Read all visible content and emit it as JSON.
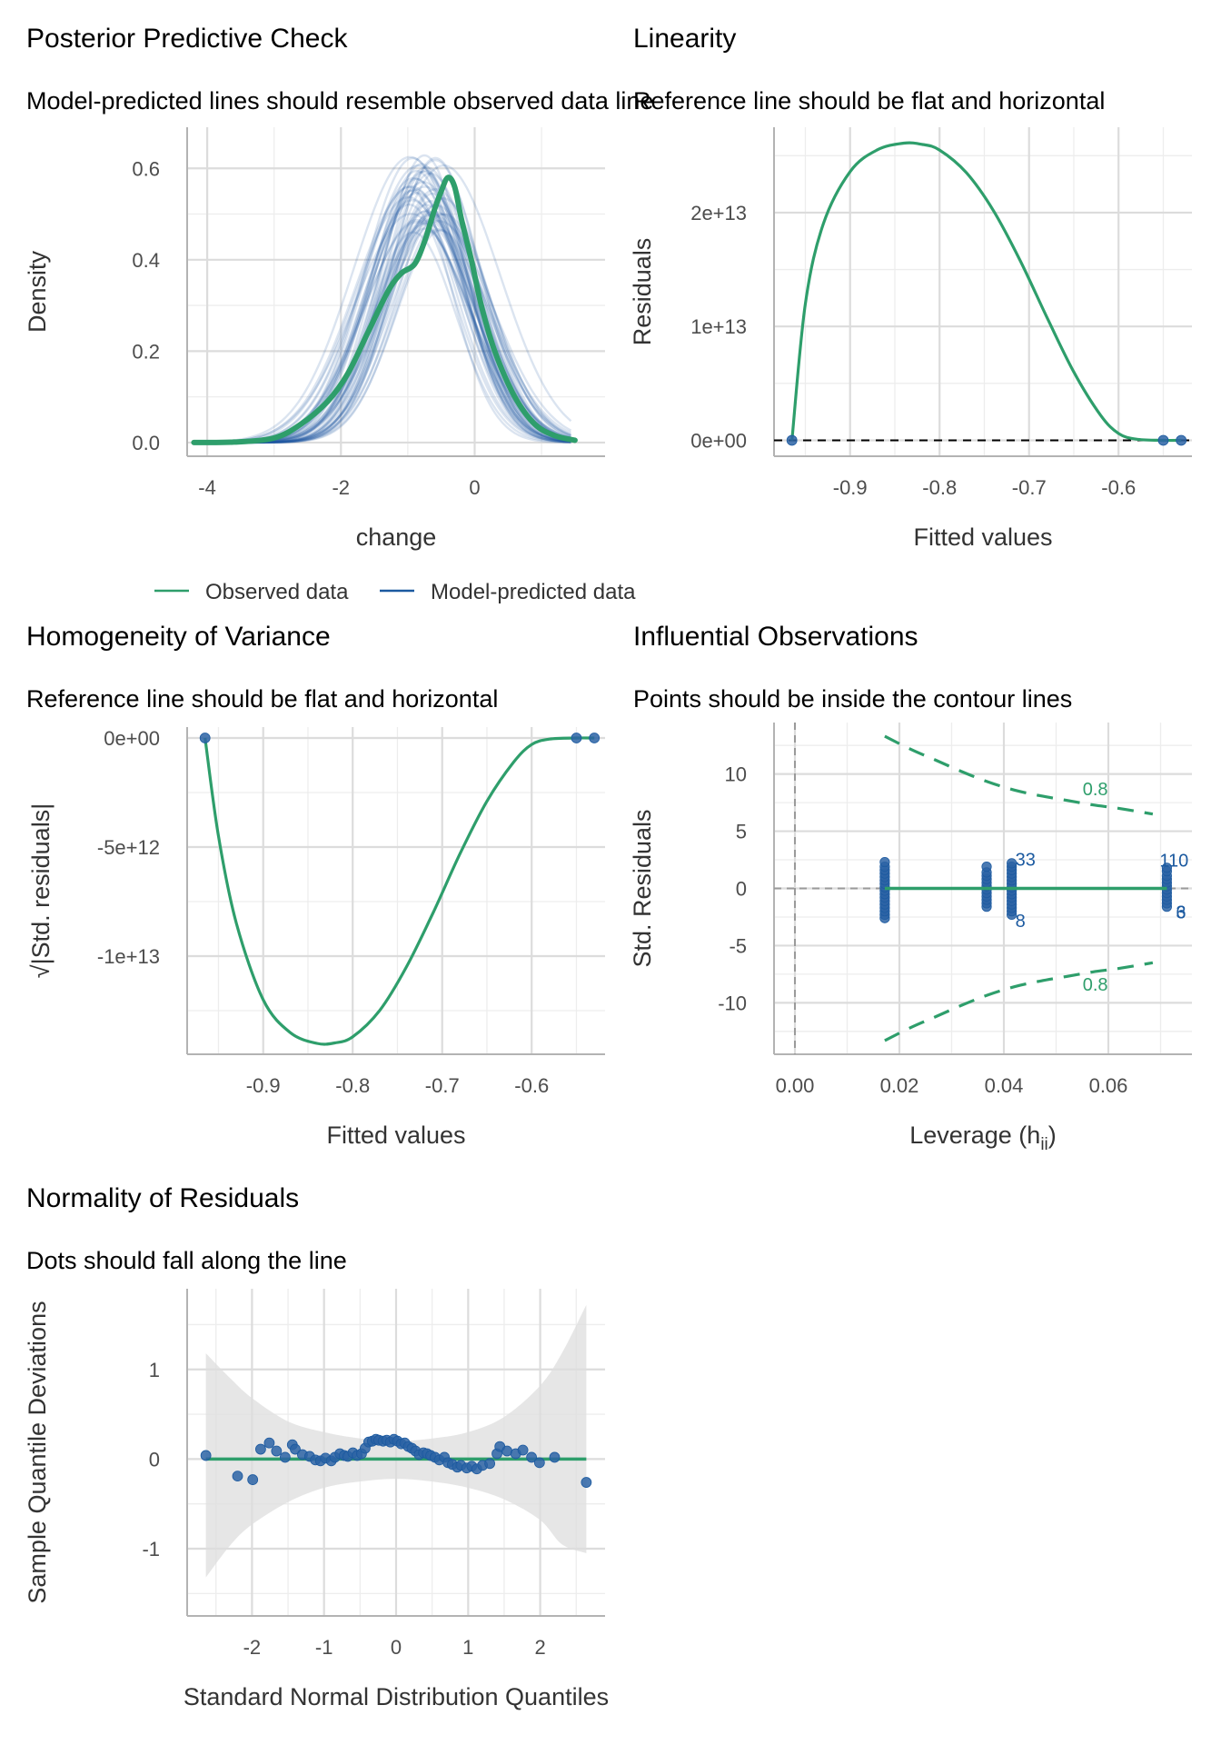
{
  "colors": {
    "observed": "#2e9e6b",
    "predicted": "#1c5aa0",
    "point": "#2b63a5",
    "band": "#dedede",
    "ref": "#000000"
  },
  "chart_data": [
    {
      "type": "line",
      "title": "Posterior Predictive Check",
      "subtitle": "Model-predicted lines should resemble observed data line",
      "xlabel": "change",
      "ylabel": "Density",
      "xlim": [
        -4.3,
        1.95
      ],
      "ylim": [
        -0.03,
        0.69
      ],
      "xticks": [
        -4,
        -2,
        0
      ],
      "xtick_labels": [
        "-4",
        "-2",
        "0"
      ],
      "yticks": [
        0,
        0.2,
        0.4,
        0.6
      ],
      "ytick_labels": [
        "0.0",
        "0.2",
        "0.4",
        "0.6"
      ],
      "legend": {
        "position": "bottom",
        "entries": [
          "Observed data",
          "Model-predicted data"
        ]
      },
      "series": [
        {
          "name": "Observed data",
          "x": [
            -4.2,
            -3.6,
            -3.0,
            -2.6,
            -2.2,
            -1.9,
            -1.6,
            -1.3,
            -1.1,
            -0.9,
            -0.75,
            -0.6,
            -0.5,
            -0.4,
            -0.3,
            -0.2,
            -0.05,
            0.1,
            0.3,
            0.6,
            0.9,
            1.2,
            1.5
          ],
          "y": [
            0.0,
            0.001,
            0.01,
            0.04,
            0.09,
            0.15,
            0.24,
            0.33,
            0.37,
            0.39,
            0.44,
            0.51,
            0.55,
            0.58,
            0.56,
            0.49,
            0.4,
            0.3,
            0.2,
            0.1,
            0.04,
            0.015,
            0.005
          ]
        },
        {
          "name": "Model-predicted data",
          "draws": 50,
          "mean_center": -0.72,
          "peak_range": [
            0.46,
            0.63
          ],
          "sd_range": [
            0.6,
            0.86
          ],
          "x_range": [
            -4.2,
            1.5
          ]
        }
      ]
    },
    {
      "type": "line",
      "title": "Linearity",
      "subtitle": "Reference line should be flat and horizontal",
      "xlabel": "Fitted values",
      "ylabel": "Residuals",
      "xlim": [
        -0.985,
        -0.518
      ],
      "ylim": [
        -1400000000000.0,
        27500000000000.0
      ],
      "xticks": [
        -0.9,
        -0.8,
        -0.7,
        -0.6
      ],
      "xtick_labels": [
        "-0.9",
        "-0.8",
        "-0.7",
        "-0.6"
      ],
      "yticks": [
        0,
        10000000000000.0,
        20000000000000.0
      ],
      "ytick_labels": [
        "0e+00",
        "1e+13",
        "2e+13"
      ],
      "reference_line": 0,
      "smooth": {
        "x": [
          -0.965,
          -0.95,
          -0.93,
          -0.9,
          -0.87,
          -0.84,
          -0.82,
          -0.8,
          -0.77,
          -0.74,
          -0.71,
          -0.68,
          -0.65,
          -0.62,
          -0.6,
          -0.58,
          -0.55,
          -0.53
        ],
        "y": [
          0,
          12000000000000.0,
          19000000000000.0,
          23600000000000.0,
          25500000000000.0,
          26100000000000.0,
          26000000000000.0,
          25500000000000.0,
          23500000000000.0,
          20200000000000.0,
          15800000000000.0,
          10800000000000.0,
          6000000000000.0,
          2200000000000.0,
          600000000000.0,
          100000000000.0,
          0,
          0
        ]
      },
      "points": {
        "x": [
          -0.965,
          -0.55,
          -0.53
        ],
        "y": [
          0,
          0,
          0
        ]
      }
    },
    {
      "type": "line",
      "title": "Homogeneity of Variance",
      "subtitle": "Reference line should be flat and horizontal",
      "xlabel": "Fitted values",
      "ylabel": "√|Std. residuals|",
      "xlim": [
        -0.985,
        -0.518
      ],
      "ylim": [
        -14500000000000.0,
        500000000000.0
      ],
      "xticks": [
        -0.9,
        -0.8,
        -0.7,
        -0.6
      ],
      "xtick_labels": [
        "-0.9",
        "-0.8",
        "-0.7",
        "-0.6"
      ],
      "yticks": [
        0,
        -5000000000000.0,
        -10000000000000.0
      ],
      "ytick_labels": [
        "0e+00",
        "-5e+12",
        "-1e+13"
      ],
      "smooth": {
        "x": [
          -0.965,
          -0.95,
          -0.93,
          -0.9,
          -0.87,
          -0.84,
          -0.82,
          -0.8,
          -0.77,
          -0.74,
          -0.71,
          -0.68,
          -0.65,
          -0.62,
          -0.6,
          -0.58,
          -0.55,
          -0.53
        ],
        "y": [
          0,
          -4500000000000.0,
          -8500000000000.0,
          -12000000000000.0,
          -13500000000000.0,
          -14000000000000.0,
          -13980000000000.0,
          -13700000000000.0,
          -12500000000000.0,
          -10500000000000.0,
          -8000000000000.0,
          -5300000000000.0,
          -2900000000000.0,
          -1100000000000.0,
          -300000000000.0,
          -50000000000.0,
          0,
          0
        ]
      },
      "points": {
        "x": [
          -0.965,
          -0.55,
          -0.53
        ],
        "y": [
          0,
          0,
          0
        ]
      }
    },
    {
      "type": "scatter",
      "title": "Influential Observations",
      "subtitle": "Points should be inside the contour lines",
      "xlabel": "Leverage (h",
      "xlabel_sub": "ii",
      "xlabel_close": ")",
      "ylabel": "Std. Residuals",
      "xlim": [
        -0.004,
        0.076
      ],
      "ylim": [
        -14.5,
        14.5
      ],
      "xticks": [
        0,
        0.02,
        0.04,
        0.06
      ],
      "xtick_labels": [
        "0.00",
        "0.02",
        "0.04",
        "0.06"
      ],
      "yticks": [
        -10,
        -5,
        0,
        5,
        10
      ],
      "ytick_labels": [
        "-10",
        "-5",
        "0",
        "5",
        "10"
      ],
      "contour_label": "0.8",
      "contour_upper": {
        "x": [
          0.0172,
          0.022,
          0.027,
          0.032,
          0.037,
          0.042,
          0.047,
          0.052,
          0.057,
          0.062,
          0.0685
        ],
        "y": [
          13.3,
          12.2,
          11.2,
          10.2,
          9.3,
          8.6,
          8.1,
          7.7,
          7.3,
          7.0,
          6.5
        ]
      },
      "contour_label_positions": [
        {
          "x": 0.0575,
          "y": 8.7
        },
        {
          "x": 0.0575,
          "y": -8.4
        }
      ],
      "groups": [
        {
          "x": 0.0172,
          "y": [
            -2.6,
            -2.3,
            -2.0,
            -1.7,
            -1.4,
            -1.1,
            -0.8,
            -0.5,
            -0.2,
            0.1,
            0.4,
            0.7,
            1.0,
            1.3,
            1.6,
            1.9,
            2.3
          ]
        },
        {
          "x": 0.0367,
          "y": [
            -1.6,
            -1.3,
            -1.0,
            -0.7,
            -0.4,
            -0.1,
            0.2,
            0.5,
            0.8,
            1.1,
            1.4,
            1.9
          ]
        },
        {
          "x": 0.0415,
          "y": [
            -2.3,
            -2.0,
            -1.7,
            -1.4,
            -1.1,
            -0.8,
            -0.5,
            -0.2,
            0.1,
            0.4,
            0.7,
            1.0,
            1.3,
            1.6,
            1.9,
            2.2
          ]
        },
        {
          "x": 0.0712,
          "y": [
            -1.6,
            -1.3,
            -1.0,
            -0.7,
            -0.4,
            -0.1,
            0.2,
            0.5,
            0.8,
            1.1,
            1.5,
            1.8
          ]
        }
      ],
      "fit_line": {
        "x": [
          0.0172,
          0.0712
        ],
        "y": [
          0,
          0
        ]
      },
      "point_labels": [
        {
          "text": "33",
          "x": 0.0415,
          "y": 2.0
        },
        {
          "text": "8",
          "x": 0.0415,
          "y": -2.1
        },
        {
          "text": "110",
          "x": 0.0712,
          "y": 1.9
        },
        {
          "text": "6",
          "x": 0.0712,
          "y": -1.5
        },
        {
          "text": "3",
          "x": 0.0712,
          "y": -1.5
        }
      ]
    },
    {
      "type": "scatter",
      "title": "Normality of Residuals",
      "subtitle": "Dots should fall along the line",
      "xlabel": "Standard Normal Distribution Quantiles",
      "ylabel": "Sample Quantile Deviations",
      "xlim": [
        -2.9,
        2.9
      ],
      "ylim": [
        -1.75,
        1.9
      ],
      "xticks": [
        -2,
        -1,
        0,
        1,
        2
      ],
      "xtick_labels": [
        "-2",
        "-1",
        "0",
        "1",
        "2"
      ],
      "yticks": [
        -1,
        0,
        1
      ],
      "ytick_labels": [
        "-1",
        "0",
        "1"
      ],
      "band": {
        "x": [
          -2.64,
          -2.3,
          -2.0,
          -1.5,
          -1.0,
          -0.5,
          0.0,
          0.5,
          1.0,
          1.5,
          2.0,
          2.3,
          2.64
        ],
        "upper": [
          1.18,
          0.9,
          0.68,
          0.42,
          0.3,
          0.23,
          0.2,
          0.23,
          0.3,
          0.47,
          0.82,
          1.18,
          1.72
        ],
        "lower": [
          -1.32,
          -0.96,
          -0.73,
          -0.48,
          -0.32,
          -0.25,
          -0.22,
          -0.25,
          -0.32,
          -0.45,
          -0.68,
          -0.95,
          -1.05
        ]
      },
      "fit_line": {
        "x": [
          -2.64,
          2.64
        ],
        "y": [
          0,
          0
        ]
      },
      "points": {
        "x": [
          -2.64,
          -2.2,
          -1.99,
          -1.88,
          -1.76,
          -1.66,
          -1.54,
          -1.44,
          -1.4,
          -1.3,
          -1.2,
          -1.12,
          -1.05,
          -0.98,
          -0.9,
          -0.85,
          -0.78,
          -0.72,
          -0.67,
          -0.6,
          -0.54,
          -0.48,
          -0.43,
          -0.38,
          -0.33,
          -0.28,
          -0.24,
          -0.18,
          -0.13,
          -0.08,
          -0.03,
          0.02,
          0.07,
          0.12,
          0.17,
          0.22,
          0.27,
          0.32,
          0.38,
          0.43,
          0.48,
          0.54,
          0.6,
          0.67,
          0.72,
          0.78,
          0.85,
          0.9,
          0.98,
          1.05,
          1.12,
          1.2,
          1.3,
          1.4,
          1.44,
          1.54,
          1.66,
          1.76,
          1.88,
          1.99,
          2.2,
          2.64
        ],
        "y": [
          0.04,
          -0.19,
          -0.23,
          0.11,
          0.18,
          0.09,
          0.02,
          0.16,
          0.11,
          0.05,
          0.03,
          -0.01,
          -0.02,
          0.01,
          -0.02,
          0.02,
          0.06,
          0.04,
          0.03,
          0.07,
          0.04,
          0.06,
          0.12,
          0.19,
          0.2,
          0.22,
          0.21,
          0.2,
          0.21,
          0.19,
          0.22,
          0.2,
          0.17,
          0.18,
          0.14,
          0.12,
          0.09,
          0.05,
          0.07,
          0.06,
          0.04,
          0.02,
          -0.01,
          0.02,
          -0.04,
          -0.06,
          -0.09,
          -0.07,
          -0.1,
          -0.08,
          -0.11,
          -0.07,
          -0.05,
          0.06,
          0.14,
          0.09,
          0.06,
          0.1,
          0.02,
          -0.04,
          0.02,
          -0.26
        ]
      }
    }
  ]
}
